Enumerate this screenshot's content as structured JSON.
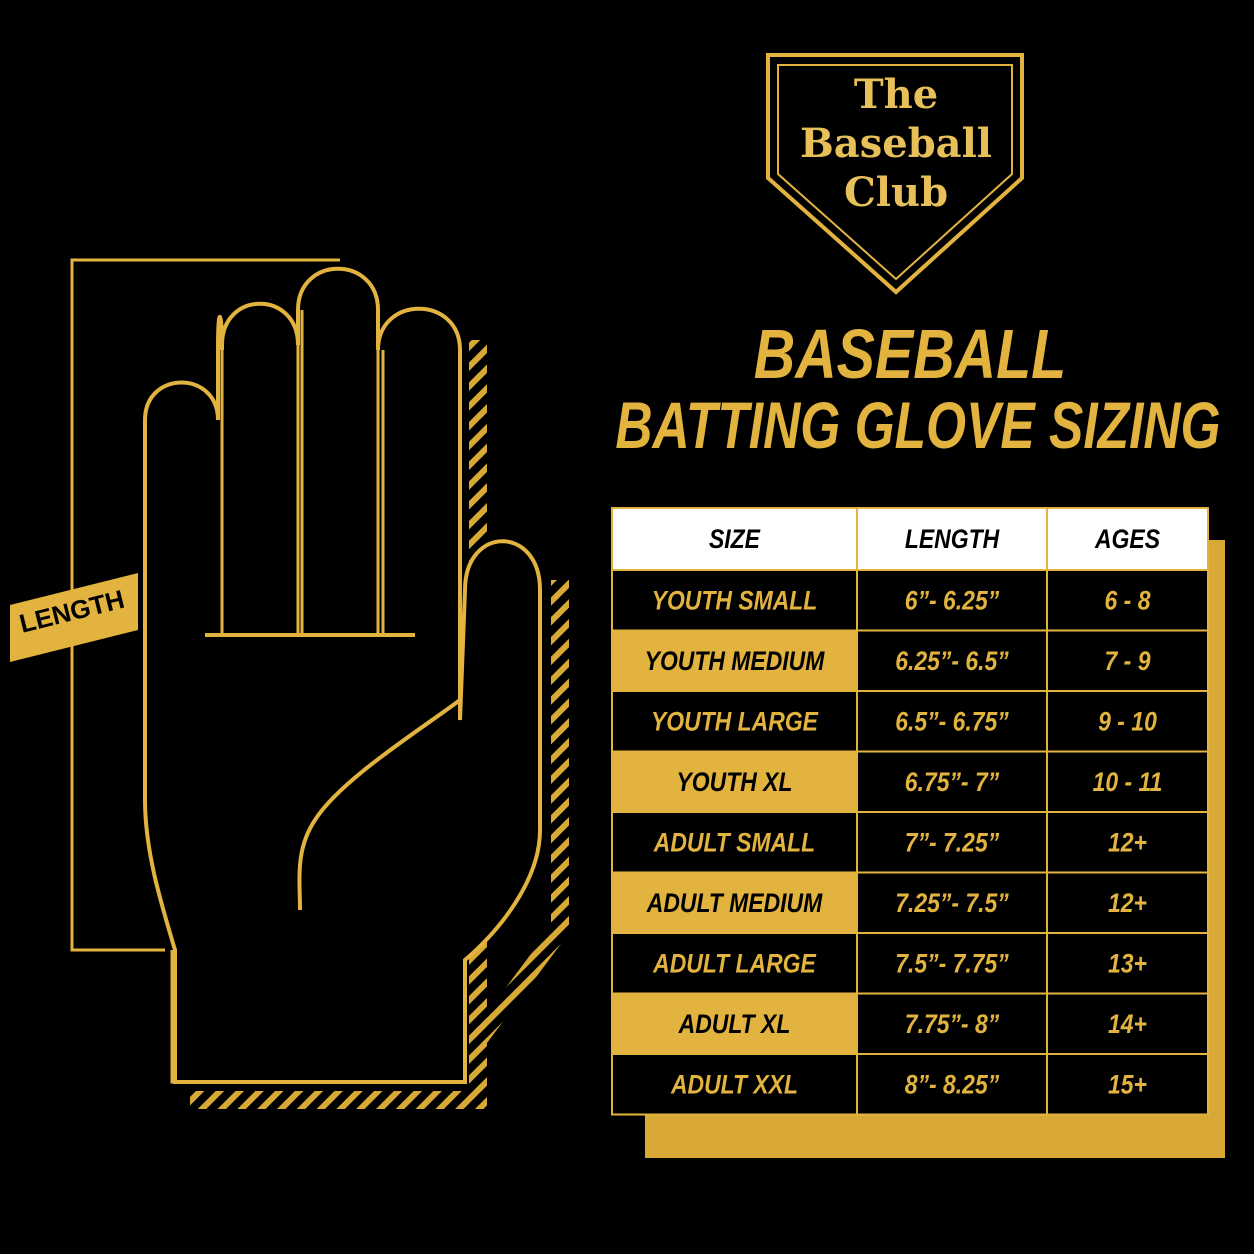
{
  "logo": [
    "The",
    "Baseball",
    "Club"
  ],
  "title": [
    "BASEBALL",
    "BATTING GLOVE SIZING"
  ],
  "length_label": "LENGTH",
  "table": {
    "header": [
      "SIZE",
      "LENGTH",
      "AGES"
    ],
    "rows": [
      [
        "YOUTH SMALL",
        "6”- 6.25”",
        "6 - 8"
      ],
      [
        "YOUTH MEDIUM",
        "6.25”- 6.5”",
        "7 - 9"
      ],
      [
        "YOUTH LARGE",
        "6.5”- 6.75”",
        "9 - 10"
      ],
      [
        "YOUTH XL",
        "6.75”- 7”",
        "10 - 11"
      ],
      [
        "ADULT SMALL",
        "7”- 7.25”",
        "12+"
      ],
      [
        "ADULT MEDIUM",
        "7.25”- 7.5”",
        "12+"
      ],
      [
        "ADULT LARGE",
        "7.5”- 7.75”",
        "13+"
      ],
      [
        "ADULT XL",
        "7.75”- 8”",
        "14+"
      ],
      [
        "ADULT XXL",
        "8”- 8.25”",
        "15+"
      ]
    ]
  }
}
